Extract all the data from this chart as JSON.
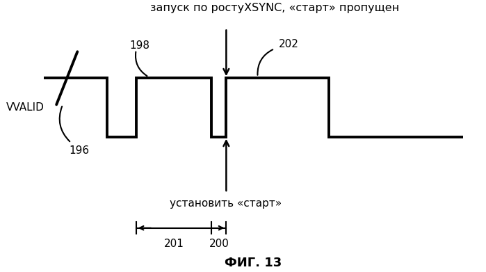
{
  "title_top": "запуск по ростуXSYNC, «старт» пропущен",
  "label_vvalid": "VVALID",
  "label_196": "196",
  "label_198": "198",
  "label_200": "200",
  "label_201": "201",
  "label_202": "202",
  "label_set_start": "установить «старт»",
  "fig_caption": "ФИГ. 13",
  "bg_color": "#ffffff",
  "line_color": "#000000",
  "xmin": -1.0,
  "xmax": 10.5,
  "ymin": -2.2,
  "ymax": 2.2,
  "line_width": 2.8,
  "font_size_title": 11.5,
  "font_size_labels": 11,
  "font_size_caption": 13
}
